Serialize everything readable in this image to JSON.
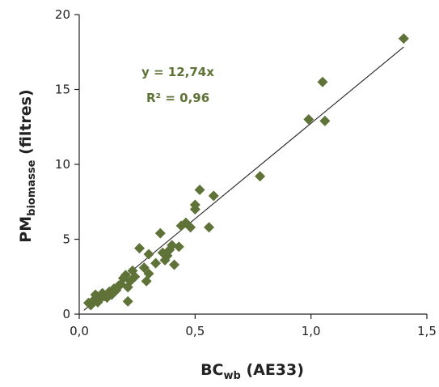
{
  "colors": {
    "marker": "#5f7238",
    "annotation": "#5f7238",
    "axis": "#222222",
    "fit_line": "#222222"
  },
  "chart_data": {
    "type": "scatter",
    "title": "",
    "xlabel_main": "BC",
    "xlabel_sub": "wb",
    "xlabel_suffix": " (AE33)",
    "ylabel_main": "PM",
    "ylabel_sub": "biomasse",
    "ylabel_suffix": " (filtres)",
    "xlim": [
      0,
      1.5
    ],
    "ylim": [
      0,
      20
    ],
    "x_ticks": [
      0,
      0.5,
      1.0,
      1.5
    ],
    "x_tick_labels": [
      "0,0",
      "0,5",
      "1,0",
      "1,5"
    ],
    "y_ticks": [
      0,
      5,
      10,
      15,
      20
    ],
    "y_tick_labels": [
      "0",
      "5",
      "10",
      "15",
      "20"
    ],
    "marker": "diamond",
    "points": [
      {
        "x": 0.04,
        "y": 0.75
      },
      {
        "x": 0.05,
        "y": 0.6
      },
      {
        "x": 0.06,
        "y": 0.9
      },
      {
        "x": 0.07,
        "y": 1.3
      },
      {
        "x": 0.08,
        "y": 0.8
      },
      {
        "x": 0.09,
        "y": 1.0
      },
      {
        "x": 0.1,
        "y": 1.4
      },
      {
        "x": 0.11,
        "y": 1.2
      },
      {
        "x": 0.12,
        "y": 1.1
      },
      {
        "x": 0.13,
        "y": 1.5
      },
      {
        "x": 0.14,
        "y": 1.3
      },
      {
        "x": 0.15,
        "y": 1.7
      },
      {
        "x": 0.16,
        "y": 1.6
      },
      {
        "x": 0.17,
        "y": 1.9
      },
      {
        "x": 0.18,
        "y": 2.0
      },
      {
        "x": 0.19,
        "y": 2.4
      },
      {
        "x": 0.2,
        "y": 2.6
      },
      {
        "x": 0.21,
        "y": 0.85
      },
      {
        "x": 0.21,
        "y": 1.8
      },
      {
        "x": 0.22,
        "y": 2.2
      },
      {
        "x": 0.23,
        "y": 2.9
      },
      {
        "x": 0.24,
        "y": 2.5
      },
      {
        "x": 0.26,
        "y": 4.4
      },
      {
        "x": 0.28,
        "y": 3.1
      },
      {
        "x": 0.29,
        "y": 2.2
      },
      {
        "x": 0.3,
        "y": 2.7
      },
      {
        "x": 0.3,
        "y": 4.0
      },
      {
        "x": 0.33,
        "y": 3.4
      },
      {
        "x": 0.35,
        "y": 5.4
      },
      {
        "x": 0.36,
        "y": 4.1
      },
      {
        "x": 0.37,
        "y": 3.6
      },
      {
        "x": 0.38,
        "y": 3.9
      },
      {
        "x": 0.39,
        "y": 4.3
      },
      {
        "x": 0.4,
        "y": 4.6
      },
      {
        "x": 0.41,
        "y": 3.3
      },
      {
        "x": 0.43,
        "y": 4.5
      },
      {
        "x": 0.44,
        "y": 5.9
      },
      {
        "x": 0.46,
        "y": 6.1
      },
      {
        "x": 0.48,
        "y": 5.8
      },
      {
        "x": 0.5,
        "y": 7.0
      },
      {
        "x": 0.5,
        "y": 7.3
      },
      {
        "x": 0.52,
        "y": 8.3
      },
      {
        "x": 0.56,
        "y": 5.8
      },
      {
        "x": 0.58,
        "y": 7.9
      },
      {
        "x": 0.78,
        "y": 9.2
      },
      {
        "x": 0.99,
        "y": 13.0
      },
      {
        "x": 1.05,
        "y": 15.5
      },
      {
        "x": 1.06,
        "y": 12.9
      },
      {
        "x": 1.4,
        "y": 18.4
      }
    ],
    "fit": {
      "slope": 12.74,
      "x_range": [
        0.02,
        1.4
      ],
      "equation_label": "y = 12,74x",
      "r2_label": "R² = 0,96"
    }
  }
}
